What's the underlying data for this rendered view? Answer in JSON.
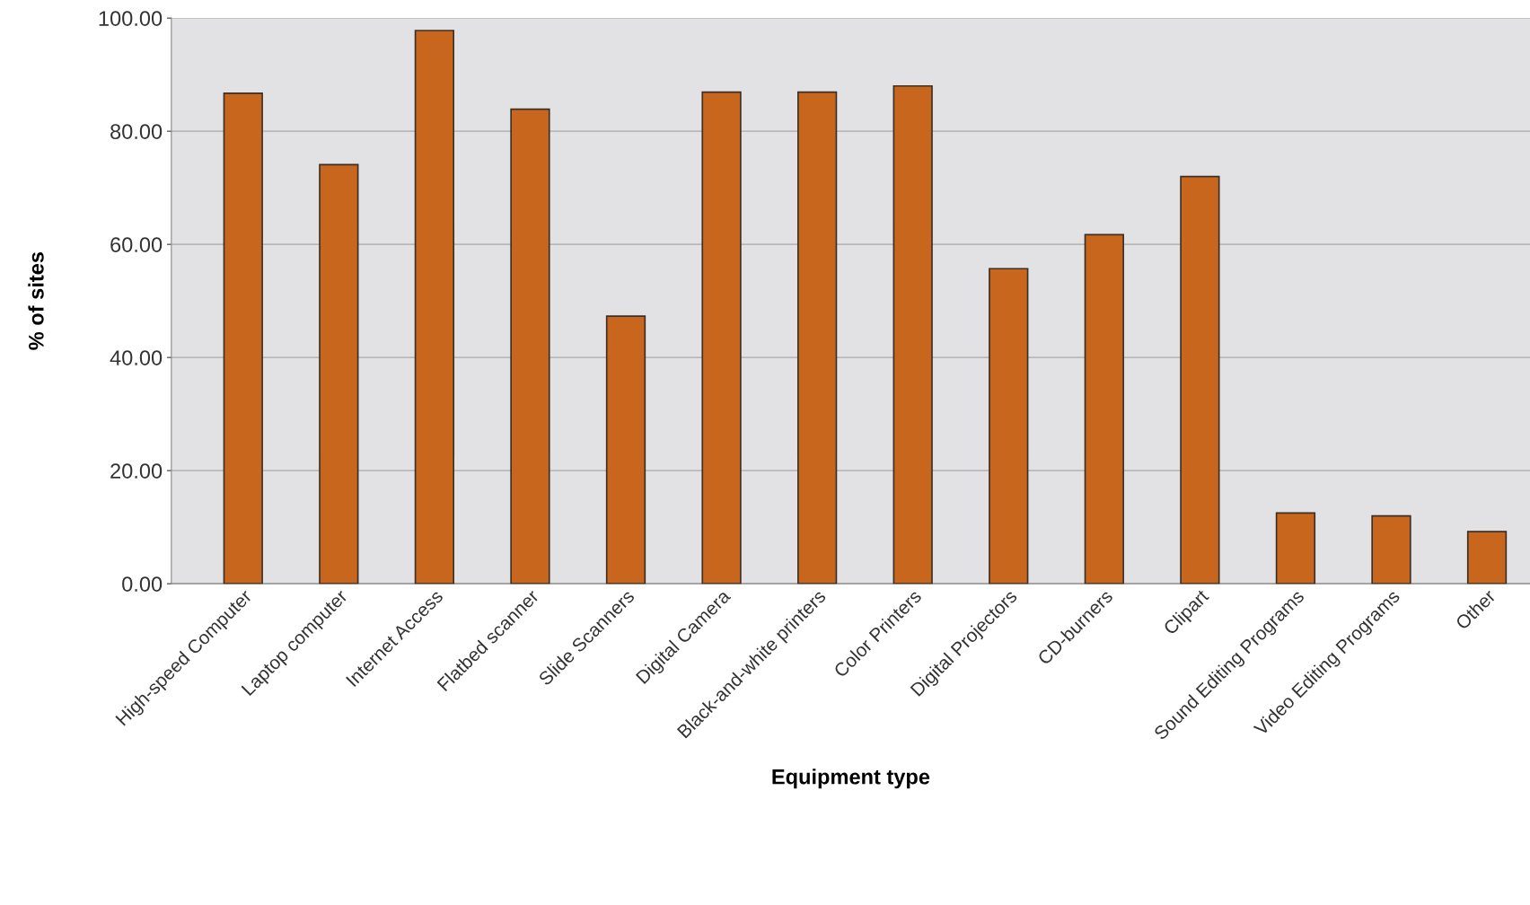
{
  "chart_data": {
    "type": "bar",
    "xlabel": "Equipment type",
    "ylabel": "% of sites",
    "categories": [
      "High-speed Computer",
      "Laptop computer",
      "Internet Access",
      "Flatbed scanner",
      "Slide Scanners",
      "Digital Camera",
      "Black-and-white printers",
      "Color Printers",
      "Digital Projectors",
      "CD-burners",
      "Clipart",
      "Sound Editing Programs",
      "Video Editing Programs",
      "Other"
    ],
    "values": [
      86.7,
      74.1,
      97.8,
      83.9,
      47.3,
      86.9,
      86.9,
      88.0,
      55.7,
      61.7,
      72.0,
      12.5,
      12.0,
      9.2
    ],
    "color": "#c8661e",
    "ylim": [
      0,
      100
    ],
    "yticks": [
      {
        "value": 0,
        "label": "0.00"
      },
      {
        "value": 20,
        "label": "20.00"
      },
      {
        "value": 40,
        "label": "40.00"
      },
      {
        "value": 60,
        "label": "60.00"
      },
      {
        "value": 80,
        "label": "80.00"
      },
      {
        "value": 100,
        "label": "100.00"
      }
    ],
    "grid": "y",
    "legend": false
  }
}
